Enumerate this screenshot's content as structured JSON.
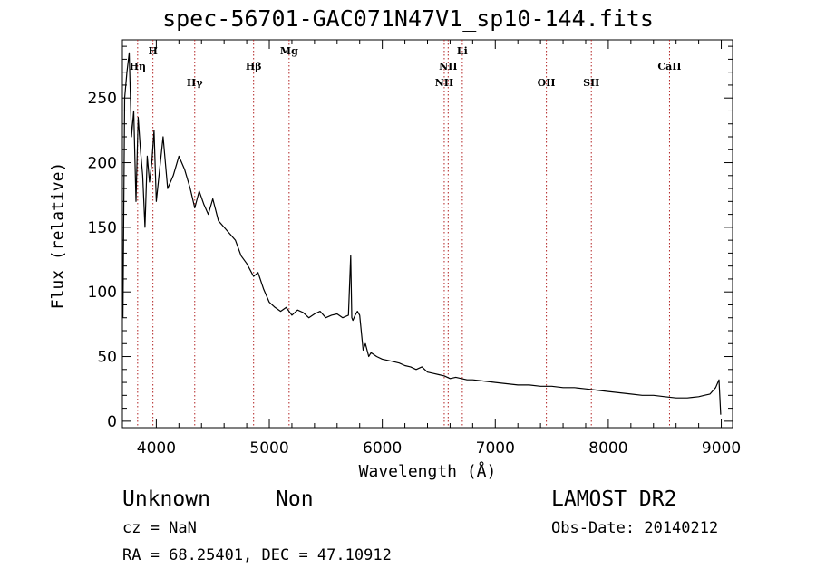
{
  "header": {
    "title": "spec-56701-GAC071N47V1_sp10-144.fits"
  },
  "footer": {
    "object_class": "Unknown",
    "object_subclass": "Non",
    "survey": "LAMOST DR2",
    "cz": "cz = NaN",
    "obs_date": "Obs-Date: 20140212",
    "radec": "RA =  68.25401, DEC =  47.10912"
  },
  "chart_data": {
    "type": "line",
    "title": "spec-56701-GAC071N47V1_sp10-144.fits",
    "xlabel": "Wavelength (Å)",
    "ylabel": "Flux (relative)",
    "xlim": [
      3700,
      9100
    ],
    "ylim": [
      -5,
      295
    ],
    "xticks": [
      4000,
      5000,
      6000,
      7000,
      8000,
      9000
    ],
    "xtick_labels": [
      "4000",
      "5000",
      "6000",
      "7000",
      "8000",
      "9000"
    ],
    "yticks": [
      0,
      50,
      100,
      150,
      200,
      250
    ],
    "ytick_labels": [
      "0",
      "50",
      "100",
      "150",
      "200",
      "250"
    ],
    "grid": false,
    "line_color": "#000000",
    "marker_color": "#b22222",
    "series": [
      {
        "x": [
          3705,
          3720,
          3740,
          3760,
          3780,
          3800,
          3820,
          3840,
          3860,
          3880,
          3900,
          3920,
          3940,
          3960,
          3980,
          4000,
          4030,
          4060,
          4100,
          4150,
          4200,
          4250,
          4300,
          4340,
          4380,
          4420,
          4460,
          4500,
          4550,
          4600,
          4650,
          4700,
          4750,
          4800,
          4861,
          4900,
          4950,
          5000,
          5050,
          5100,
          5150,
          5200,
          5250,
          5300,
          5350,
          5400,
          5450,
          5500,
          5550,
          5600,
          5650,
          5700,
          5720,
          5730,
          5740,
          5760,
          5780,
          5800,
          5830,
          5850,
          5880,
          5900,
          5950,
          6000,
          6050,
          6100,
          6150,
          6200,
          6250,
          6300,
          6350,
          6400,
          6450,
          6500,
          6550,
          6600,
          6650,
          6700,
          6750,
          6800,
          6900,
          7000,
          7100,
          7200,
          7300,
          7400,
          7500,
          7600,
          7700,
          7800,
          7900,
          8000,
          8100,
          8200,
          8300,
          8400,
          8500,
          8600,
          8700,
          8800,
          8850,
          8900,
          8950,
          8980,
          8995
        ],
        "y": [
          80,
          250,
          270,
          285,
          220,
          240,
          170,
          235,
          210,
          190,
          150,
          205,
          185,
          200,
          225,
          170,
          195,
          220,
          180,
          190,
          205,
          195,
          180,
          165,
          178,
          168,
          160,
          172,
          155,
          150,
          145,
          140,
          128,
          122,
          112,
          115,
          102,
          92,
          88,
          85,
          88,
          82,
          86,
          84,
          80,
          83,
          85,
          80,
          82,
          83,
          80,
          82,
          128,
          80,
          78,
          82,
          85,
          82,
          55,
          60,
          50,
          53,
          50,
          48,
          47,
          46,
          45,
          43,
          42,
          40,
          42,
          38,
          37,
          36,
          35,
          33,
          34,
          33,
          32,
          32,
          31,
          30,
          29,
          28,
          28,
          27,
          27,
          26,
          26,
          25,
          24,
          23,
          22,
          21,
          20,
          20,
          19,
          18,
          18,
          19,
          20,
          21,
          26,
          32,
          5
        ]
      }
    ],
    "line_markers": [
      {
        "label": "Hη",
        "x": 3835,
        "tier": 2
      },
      {
        "label": "H",
        "x": 3970,
        "tier": 1
      },
      {
        "label": "Hγ",
        "x": 4340,
        "tier": 3
      },
      {
        "label": "Hβ",
        "x": 4861,
        "tier": 2
      },
      {
        "label": "Mg",
        "x": 5175,
        "tier": 1
      },
      {
        "label": "NII",
        "x": 6548,
        "tier": 3
      },
      {
        "label": "NII",
        "x": 6583,
        "tier": 2
      },
      {
        "label": "Li",
        "x": 6708,
        "tier": 1
      },
      {
        "label": "OII",
        "x": 7452,
        "tier": 3
      },
      {
        "label": "SII",
        "x": 7850,
        "tier": 3
      },
      {
        "label": "CaII",
        "x": 8542,
        "tier": 2
      }
    ]
  }
}
